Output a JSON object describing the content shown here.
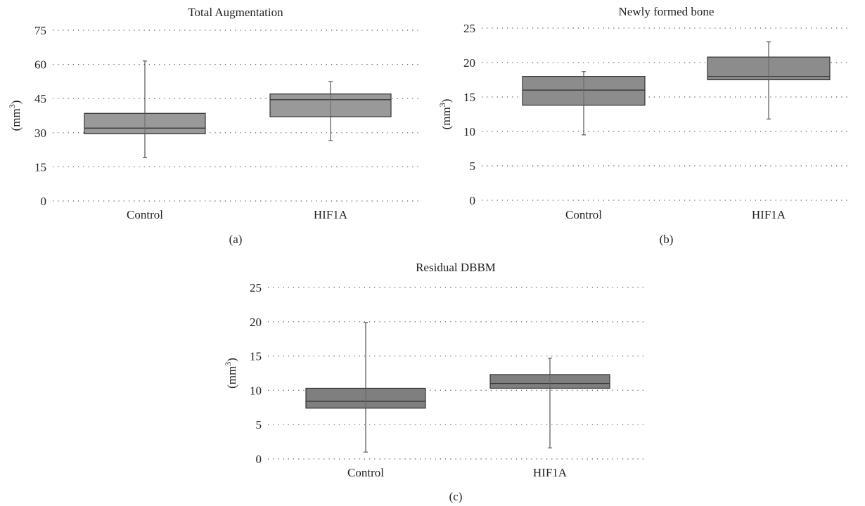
{
  "chart_data": [
    {
      "type": "box",
      "title": "Total Augmentation",
      "ylabel": "(mm",
      "ylabel_sup": "3",
      "ylabel_close": ")",
      "panel": "(a)",
      "ylim": [
        0,
        75
      ],
      "yticks": [
        0,
        15,
        30,
        45,
        60,
        75
      ],
      "grid": true,
      "box_color": "#999999",
      "categories": [
        "Control",
        "HIF1A"
      ],
      "boxes": [
        {
          "category": "Control",
          "min": 19,
          "q1": 29.5,
          "median": 32,
          "q3": 38.5,
          "max": 61.5
        },
        {
          "category": "HIF1A",
          "min": 26.5,
          "q1": 37,
          "median": 44.5,
          "q3": 47,
          "max": 52.5
        }
      ]
    },
    {
      "type": "box",
      "title": "Newly formed bone",
      "ylabel": "(mm",
      "ylabel_sup": "3",
      "ylabel_close": ")",
      "panel": "(b)",
      "ylim": [
        0,
        25
      ],
      "yticks": [
        0,
        5,
        10,
        15,
        20,
        25
      ],
      "grid": true,
      "box_color": "#8c8c8c",
      "categories": [
        "Control",
        "HIF1A"
      ],
      "boxes": [
        {
          "category": "Control",
          "min": 9.5,
          "q1": 13.8,
          "median": 16,
          "q3": 18,
          "max": 18.7
        },
        {
          "category": "HIF1A",
          "min": 11.8,
          "q1": 17.5,
          "median": 18,
          "q3": 20.8,
          "max": 23
        }
      ]
    },
    {
      "type": "box",
      "title": "Residual DBBM",
      "ylabel": "(mm",
      "ylabel_sup": "3",
      "ylabel_close": ")",
      "panel": "(c)",
      "ylim": [
        0,
        25
      ],
      "yticks": [
        0,
        5,
        10,
        15,
        20,
        25
      ],
      "grid": true,
      "box_color": "#7f7f7f",
      "categories": [
        "Control",
        "HIF1A"
      ],
      "boxes": [
        {
          "category": "Control",
          "min": 1,
          "q1": 7.4,
          "median": 8.4,
          "q3": 10.3,
          "max": 19.9
        },
        {
          "category": "HIF1A",
          "min": 1.6,
          "q1": 10.3,
          "median": 11,
          "q3": 12.3,
          "max": 14.7
        }
      ]
    }
  ]
}
